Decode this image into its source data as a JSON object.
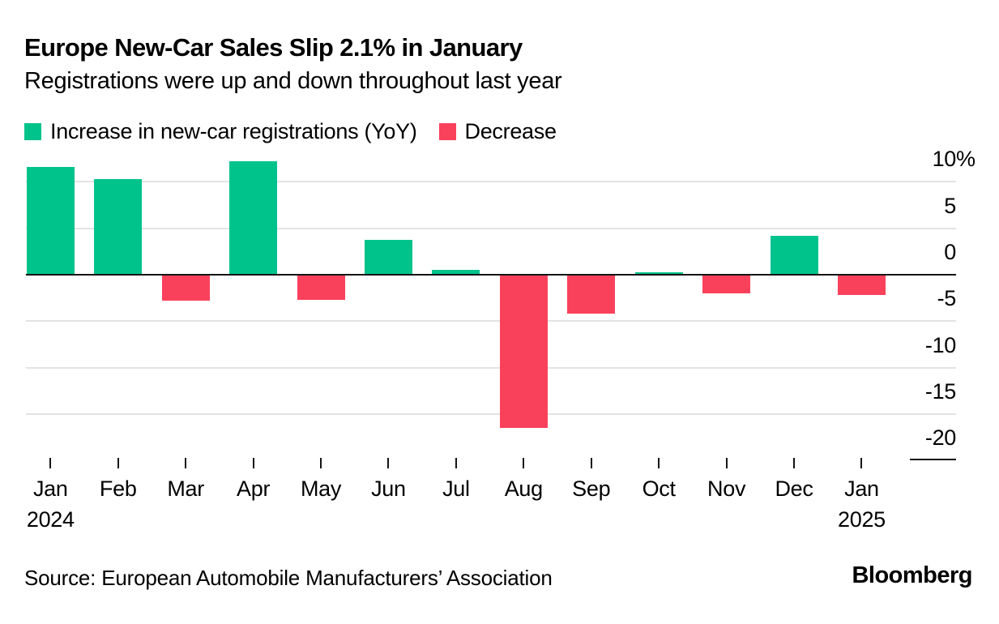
{
  "header": {
    "title": "Europe New-Car Sales Slip 2.1% in January",
    "subtitle": "Registrations were up and down throughout last year"
  },
  "legend": {
    "increase": "Increase in new-car registrations (YoY)",
    "decrease": "Decrease"
  },
  "footer": {
    "source": "Source: European Automobile Manufacturers’ Association",
    "brand": "Bloomberg"
  },
  "colors": {
    "increase": "#00C38B",
    "decrease": "#FA415C",
    "gridline": "#E3E3E3",
    "axis": "#141414",
    "text": "#000000"
  },
  "chart_data": {
    "type": "bar",
    "title": "Europe New-Car Sales Slip 2.1% in January",
    "subtitle": "Registrations were up and down throughout last year",
    "unit": "%",
    "categories": [
      "Jan 2024",
      "Feb",
      "Mar",
      "Apr",
      "May",
      "Jun",
      "Jul",
      "Aug",
      "Sep",
      "Oct",
      "Nov",
      "Dec",
      "Jan 2025"
    ],
    "values": [
      11.5,
      10.2,
      -2.7,
      12.1,
      -2.6,
      3.7,
      0.4,
      -16.4,
      -4.1,
      0.2,
      -1.9,
      4.1,
      -2.1
    ],
    "series": [
      {
        "name": "Increase in new-car registrations (YoY)",
        "color": "#00C38B",
        "applies_to": "values >= 0"
      },
      {
        "name": "Decrease",
        "color": "#FA415C",
        "applies_to": "values < 0"
      }
    ],
    "x_labels": [
      {
        "month": "Jan",
        "year": "2024"
      },
      {
        "month": "Feb"
      },
      {
        "month": "Mar"
      },
      {
        "month": "Apr"
      },
      {
        "month": "May"
      },
      {
        "month": "Jun"
      },
      {
        "month": "Jul"
      },
      {
        "month": "Aug"
      },
      {
        "month": "Sep"
      },
      {
        "month": "Oct"
      },
      {
        "month": "Nov"
      },
      {
        "month": "Dec"
      },
      {
        "month": "Jan",
        "year": "2025"
      }
    ],
    "yticks": [
      10,
      5,
      0,
      -5,
      -10,
      -15,
      -20
    ],
    "ytick_suffix_on_first": "%",
    "ylim": [
      -20,
      12.5
    ],
    "grid": "horizontal",
    "legend_position": "top-left",
    "ylabel": "",
    "xlabel": ""
  }
}
